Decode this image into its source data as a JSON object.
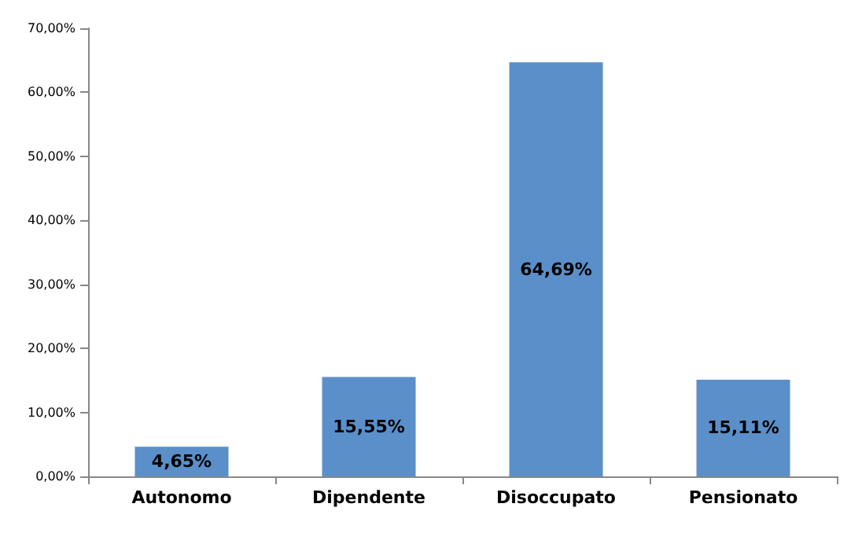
{
  "chart_data": {
    "type": "bar",
    "categories": [
      "Autonomo",
      "Dipendente",
      "Disoccupato",
      "Pensionato"
    ],
    "values": [
      4.65,
      15.55,
      64.69,
      15.11
    ],
    "value_labels": [
      "4,65%",
      "15,55%",
      "64,69%",
      "15,11%"
    ],
    "color": "#5b8fc9",
    "ylim": [
      0,
      70
    ],
    "yticks": [
      {
        "value": 0,
        "label": "0,00%"
      },
      {
        "value": 10,
        "label": "10,00%"
      },
      {
        "value": 20,
        "label": "20,00%"
      },
      {
        "value": 30,
        "label": "30,00%"
      },
      {
        "value": 40,
        "label": "40,00%"
      },
      {
        "value": 50,
        "label": "50,00%"
      },
      {
        "value": 60,
        "label": "60,00%"
      },
      {
        "value": 70,
        "label": "70,00%"
      }
    ],
    "grid": false
  }
}
